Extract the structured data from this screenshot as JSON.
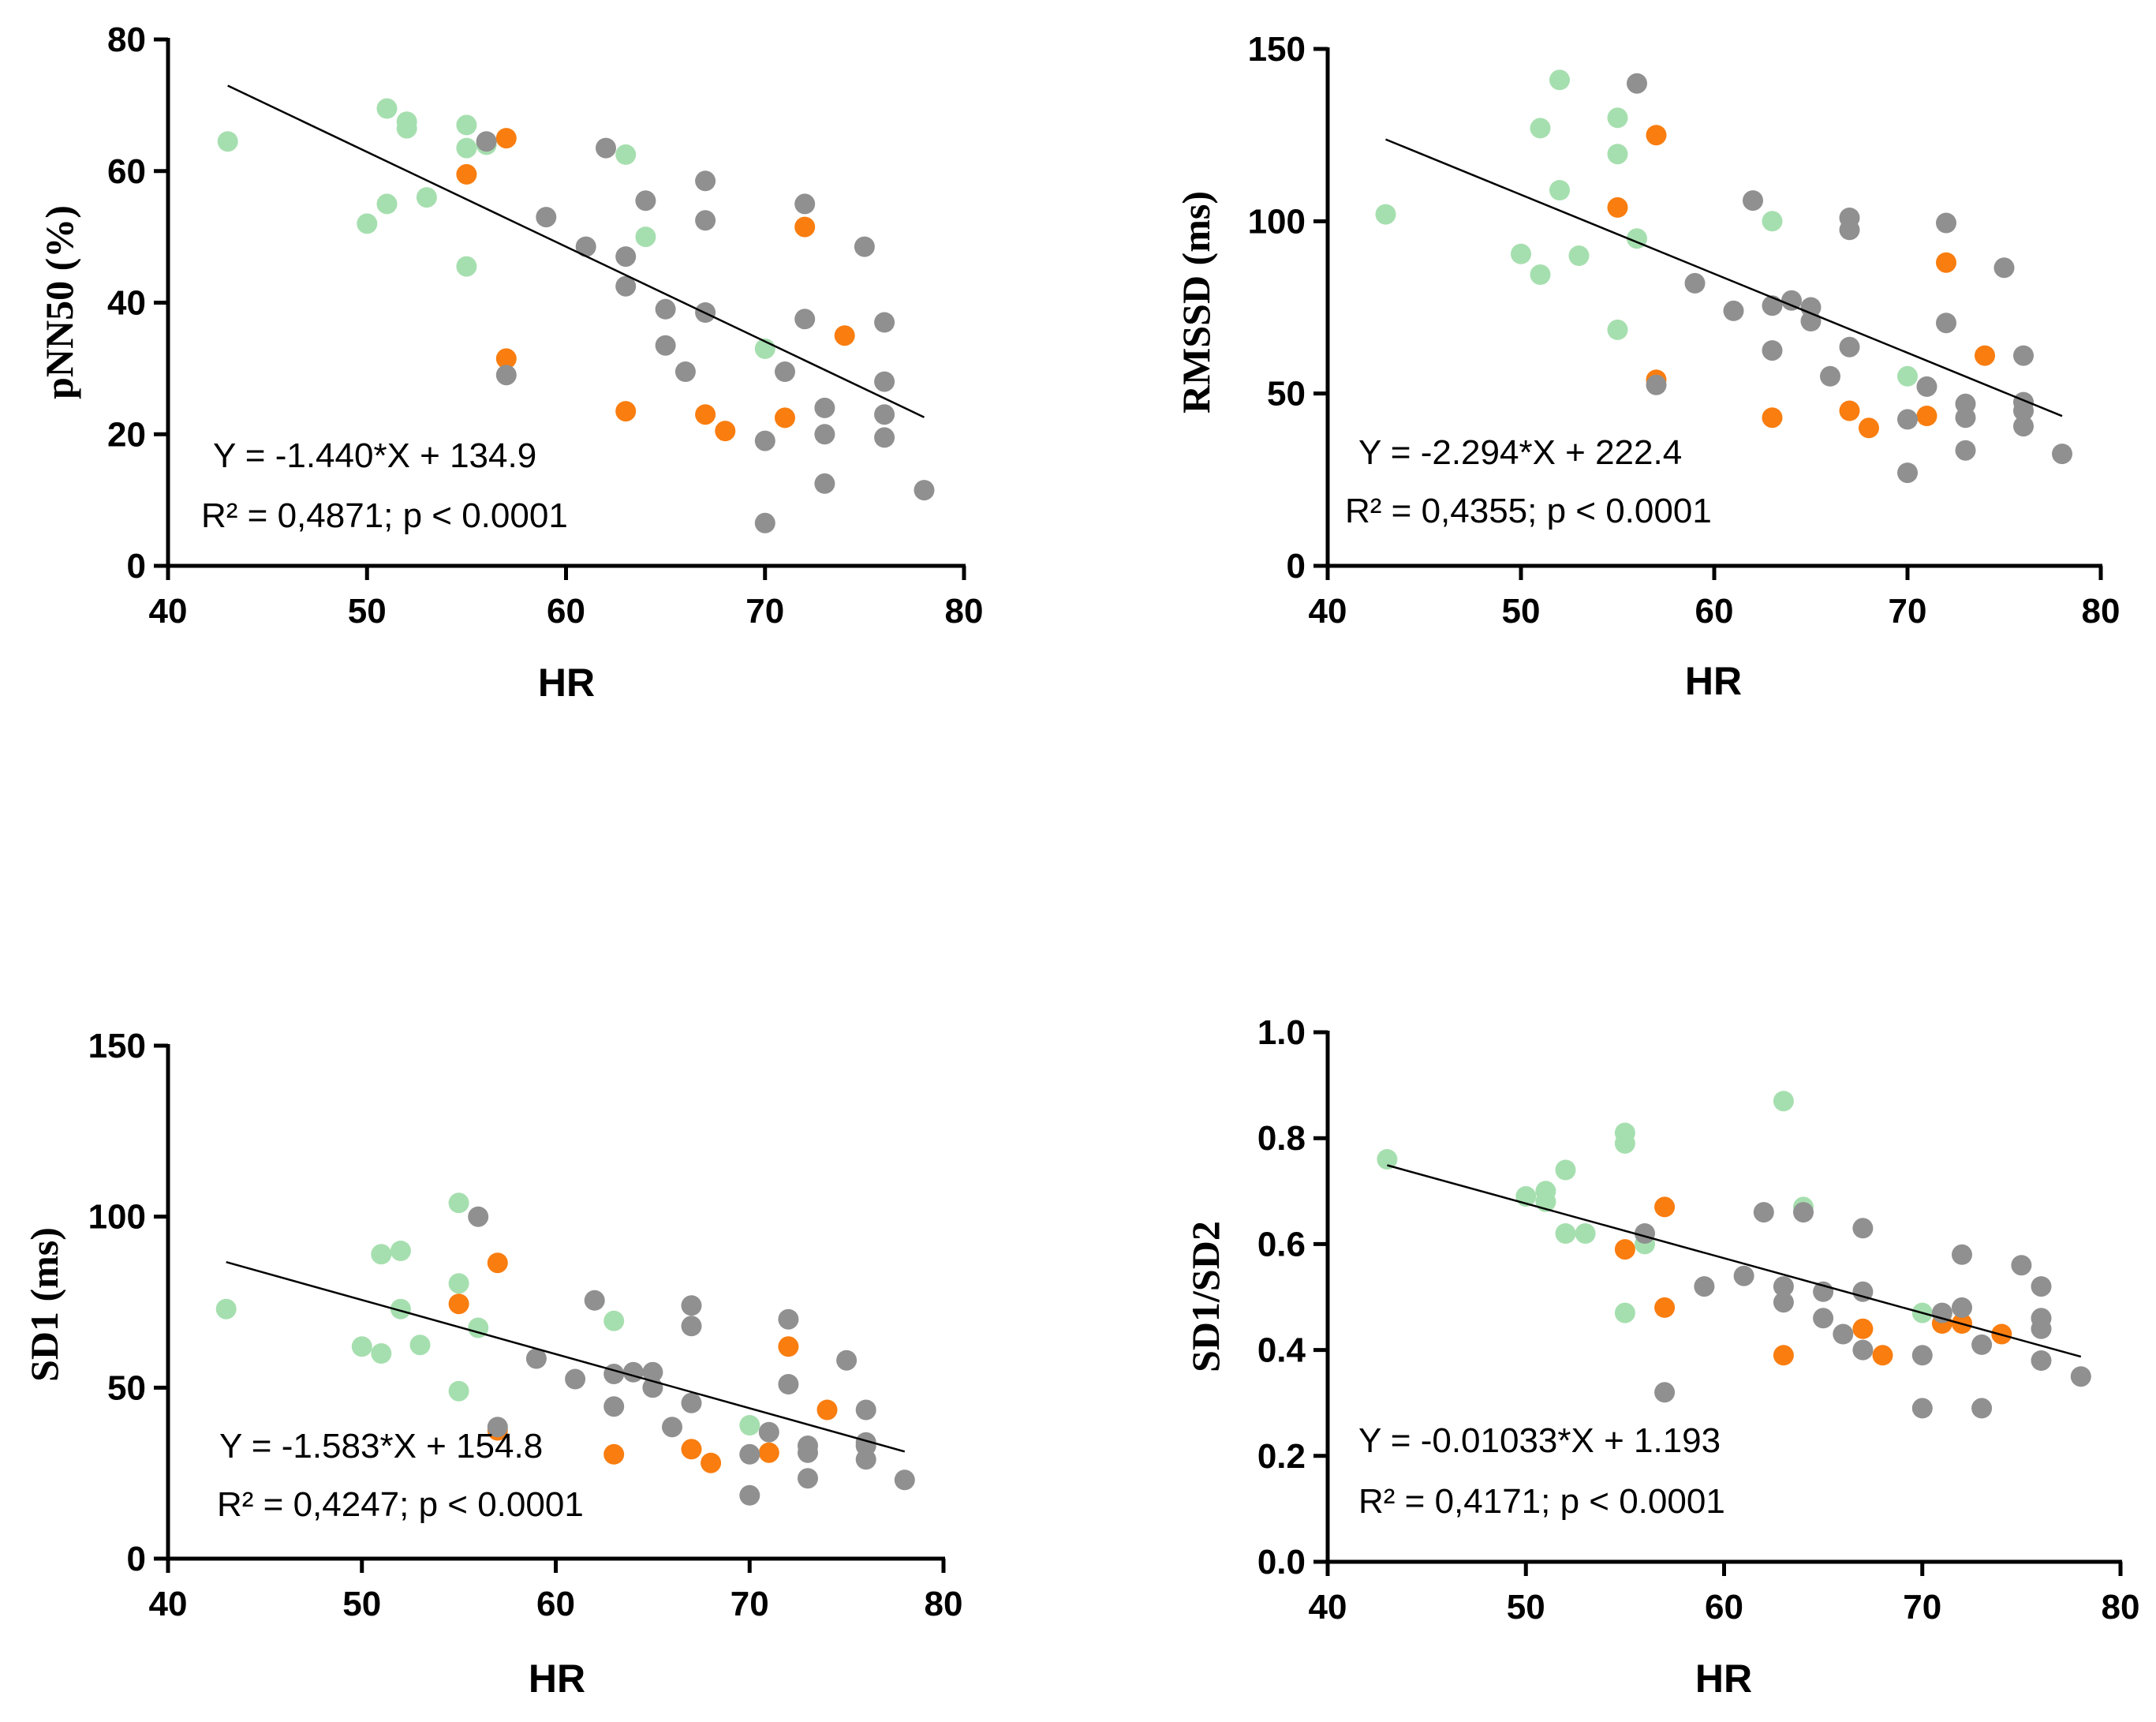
{
  "colors": {
    "green": "#a6dfaf",
    "orange": "#f97d0f",
    "gray": "#909090"
  },
  "chart_data": [
    {
      "type": "scatter",
      "title": "",
      "xlabel": "HR",
      "ylabel": "pNN50 (%)",
      "xlim": [
        40,
        80
      ],
      "ylim": [
        0,
        80
      ],
      "xticks": [
        40,
        50,
        60,
        70,
        80
      ],
      "yticks": [
        0,
        20,
        40,
        60,
        80
      ],
      "equation": "Y = -1.440*X + 134.9",
      "stats": "R² = 0,4871; p < 0.0001",
      "regression": {
        "slope": -1.44,
        "intercept": 134.9,
        "x_range": [
          43,
          78
        ]
      },
      "series": [
        {
          "color": "green",
          "points": [
            [
              43,
              64.5
            ],
            [
              50,
              52
            ],
            [
              51,
              55
            ],
            [
              51,
              69.5
            ],
            [
              52,
              67.5
            ],
            [
              52,
              66.5
            ],
            [
              53,
              56
            ],
            [
              55,
              67
            ],
            [
              55,
              63.5
            ],
            [
              55,
              45.5
            ],
            [
              56,
              64
            ],
            [
              63,
              62.5
            ],
            [
              64,
              50
            ],
            [
              70,
              33
            ]
          ]
        },
        {
          "color": "orange",
          "points": [
            [
              55,
              59.5
            ],
            [
              57,
              65
            ],
            [
              57,
              31.5
            ],
            [
              63,
              23.5
            ],
            [
              67,
              23
            ],
            [
              68,
              20.5
            ],
            [
              71,
              22.5
            ],
            [
              72,
              51.5
            ],
            [
              74,
              35
            ]
          ]
        },
        {
          "color": "gray",
          "points": [
            [
              56,
              64.5
            ],
            [
              57,
              29
            ],
            [
              59,
              53
            ],
            [
              61,
              48.5
            ],
            [
              62,
              63.5
            ],
            [
              63,
              47
            ],
            [
              63,
              42.5
            ],
            [
              64,
              55.5
            ],
            [
              65,
              39
            ],
            [
              65,
              33.5
            ],
            [
              66,
              29.5
            ],
            [
              67,
              58.5
            ],
            [
              67,
              52.5
            ],
            [
              67,
              38.5
            ],
            [
              70,
              19
            ],
            [
              70,
              6.5
            ],
            [
              71,
              29.5
            ],
            [
              72,
              55
            ],
            [
              72,
              37.5
            ],
            [
              73,
              24
            ],
            [
              73,
              20
            ],
            [
              73,
              12.5
            ],
            [
              75,
              48.5
            ],
            [
              76,
              37
            ],
            [
              76,
              28
            ],
            [
              76,
              23
            ],
            [
              76,
              19.5
            ],
            [
              78,
              11.5
            ]
          ]
        }
      ]
    },
    {
      "type": "scatter",
      "title": "",
      "xlabel": "HR",
      "ylabel": "RMSSD (ms)",
      "xlim": [
        40,
        80
      ],
      "ylim": [
        0,
        150
      ],
      "xticks": [
        40,
        50,
        60,
        70,
        80
      ],
      "yticks": [
        0,
        50,
        100,
        150
      ],
      "equation": "Y = -2.294*X + 222.4",
      "stats": "R² = 0,4355; p < 0.0001",
      "regression": {
        "slope": -2.294,
        "intercept": 222.4,
        "x_range": [
          43,
          78
        ]
      },
      "series": [
        {
          "color": "green",
          "points": [
            [
              43,
              102
            ],
            [
              50,
              90.5
            ],
            [
              51,
              84.5
            ],
            [
              51,
              127
            ],
            [
              52,
              141
            ],
            [
              52,
              109
            ],
            [
              53,
              90
            ],
            [
              55,
              130
            ],
            [
              55,
              119.5
            ],
            [
              55,
              68.5
            ],
            [
              56,
              95
            ],
            [
              63,
              100
            ],
            [
              70,
              55
            ]
          ]
        },
        {
          "color": "orange",
          "points": [
            [
              55,
              104
            ],
            [
              57,
              125
            ],
            [
              57,
              54
            ],
            [
              63,
              43
            ],
            [
              67,
              45
            ],
            [
              68,
              40
            ],
            [
              71,
              43.5
            ],
            [
              72,
              88
            ],
            [
              74,
              61
            ]
          ]
        },
        {
          "color": "gray",
          "points": [
            [
              56,
              140
            ],
            [
              57,
              52.5
            ],
            [
              59,
              82
            ],
            [
              61,
              74
            ],
            [
              62,
              106
            ],
            [
              63,
              75.5
            ],
            [
              63,
              62.5
            ],
            [
              64,
              77
            ],
            [
              65,
              75
            ],
            [
              65,
              71
            ],
            [
              66,
              55
            ],
            [
              67,
              101
            ],
            [
              67,
              97.5
            ],
            [
              67,
              63.5
            ],
            [
              70,
              42.5
            ],
            [
              70,
              27
            ],
            [
              71,
              52
            ],
            [
              72,
              99.5
            ],
            [
              72,
              70.5
            ],
            [
              73,
              47
            ],
            [
              73,
              43
            ],
            [
              73,
              33.5
            ],
            [
              75,
              86.5
            ],
            [
              76,
              61
            ],
            [
              76,
              47.5
            ],
            [
              76,
              45
            ],
            [
              76,
              40.5
            ],
            [
              78,
              32.5
            ]
          ]
        }
      ]
    },
    {
      "type": "scatter",
      "title": "",
      "xlabel": "HR",
      "ylabel": "SD1 (ms)",
      "xlim": [
        40,
        80
      ],
      "ylim": [
        0,
        150
      ],
      "xticks": [
        40,
        50,
        60,
        70,
        80
      ],
      "yticks": [
        0,
        50,
        100,
        150
      ],
      "equation": "Y = -1.583*X + 154.8",
      "stats": "R² = 0,4247; p < 0.0001",
      "regression": {
        "slope": -1.583,
        "intercept": 154.8,
        "x_range": [
          43,
          78
        ]
      },
      "series": [
        {
          "color": "green",
          "points": [
            [
              43,
              73
            ],
            [
              50,
              62
            ],
            [
              51,
              60
            ],
            [
              51,
              89
            ],
            [
              52,
              90
            ],
            [
              52,
              73
            ],
            [
              53,
              62.5
            ],
            [
              55,
              104
            ],
            [
              55,
              80.5
            ],
            [
              55,
              49
            ],
            [
              56,
              67.5
            ],
            [
              63,
              69.5
            ],
            [
              70,
              39
            ]
          ]
        },
        {
          "color": "orange",
          "points": [
            [
              55,
              74.5
            ],
            [
              57,
              86.5
            ],
            [
              57,
              37.5
            ],
            [
              63,
              30.5
            ],
            [
              67,
              32
            ],
            [
              68,
              28
            ],
            [
              71,
              31
            ],
            [
              72,
              62
            ],
            [
              74,
              43.5
            ]
          ]
        },
        {
          "color": "gray",
          "points": [
            [
              56,
              100
            ],
            [
              57,
              38.5
            ],
            [
              59,
              58.5
            ],
            [
              61,
              52.5
            ],
            [
              62,
              75.5
            ],
            [
              63,
              54
            ],
            [
              63,
              44.5
            ],
            [
              64,
              54.5
            ],
            [
              65,
              54.5
            ],
            [
              65,
              50
            ],
            [
              66,
              38.5
            ],
            [
              67,
              74
            ],
            [
              67,
              68
            ],
            [
              67,
              45.5
            ],
            [
              70,
              30.5
            ],
            [
              70,
              18.5
            ],
            [
              71,
              37
            ],
            [
              72,
              70
            ],
            [
              72,
              51
            ],
            [
              73,
              33
            ],
            [
              73,
              31
            ],
            [
              73,
              23.5
            ],
            [
              75,
              58
            ],
            [
              76,
              43.5
            ],
            [
              76,
              34
            ],
            [
              76,
              33
            ],
            [
              76,
              29
            ],
            [
              78,
              23
            ]
          ]
        }
      ]
    },
    {
      "type": "scatter",
      "title": "",
      "xlabel": "HR",
      "ylabel": "SD1/SD2",
      "xlim": [
        40,
        80
      ],
      "ylim": [
        0,
        1.0
      ],
      "xticks": [
        40,
        50,
        60,
        70,
        80
      ],
      "yticks": [
        0.0,
        0.2,
        0.4,
        0.6,
        0.8,
        1.0
      ],
      "equation": "Y = -0.01033*X + 1.193",
      "stats": "R² = 0,4171; p < 0.0001",
      "regression": {
        "slope": -0.01033,
        "intercept": 1.193,
        "x_range": [
          43,
          78
        ]
      },
      "series": [
        {
          "color": "green",
          "points": [
            [
              43,
              0.76
            ],
            [
              50,
              0.69
            ],
            [
              51,
              0.68
            ],
            [
              51,
              0.7
            ],
            [
              52,
              0.74
            ],
            [
              52,
              0.62
            ],
            [
              53,
              0.62
            ],
            [
              55,
              0.81
            ],
            [
              55,
              0.79
            ],
            [
              55,
              0.47
            ],
            [
              56,
              0.6
            ],
            [
              63,
              0.87
            ],
            [
              64,
              0.67
            ],
            [
              70,
              0.47
            ]
          ]
        },
        {
          "color": "orange",
          "points": [
            [
              55,
              0.59
            ],
            [
              57,
              0.67
            ],
            [
              57,
              0.48
            ],
            [
              63,
              0.39
            ],
            [
              67,
              0.44
            ],
            [
              68,
              0.39
            ],
            [
              71,
              0.45
            ],
            [
              72,
              0.45
            ],
            [
              74,
              0.43
            ]
          ]
        },
        {
          "color": "gray",
          "points": [
            [
              56,
              0.62
            ],
            [
              57,
              0.32
            ],
            [
              59,
              0.52
            ],
            [
              61,
              0.54
            ],
            [
              62,
              0.66
            ],
            [
              63,
              0.52
            ],
            [
              63,
              0.49
            ],
            [
              64,
              0.66
            ],
            [
              65,
              0.51
            ],
            [
              65,
              0.46
            ],
            [
              66,
              0.43
            ],
            [
              67,
              0.63
            ],
            [
              67,
              0.51
            ],
            [
              67,
              0.4
            ],
            [
              70,
              0.39
            ],
            [
              70,
              0.29
            ],
            [
              71,
              0.47
            ],
            [
              72,
              0.58
            ],
            [
              72,
              0.48
            ],
            [
              73,
              0.41
            ],
            [
              73,
              0.29
            ],
            [
              75,
              0.56
            ],
            [
              76,
              0.52
            ],
            [
              76,
              0.46
            ],
            [
              76,
              0.44
            ],
            [
              76,
              0.38
            ],
            [
              78,
              0.35
            ]
          ]
        }
      ]
    }
  ]
}
